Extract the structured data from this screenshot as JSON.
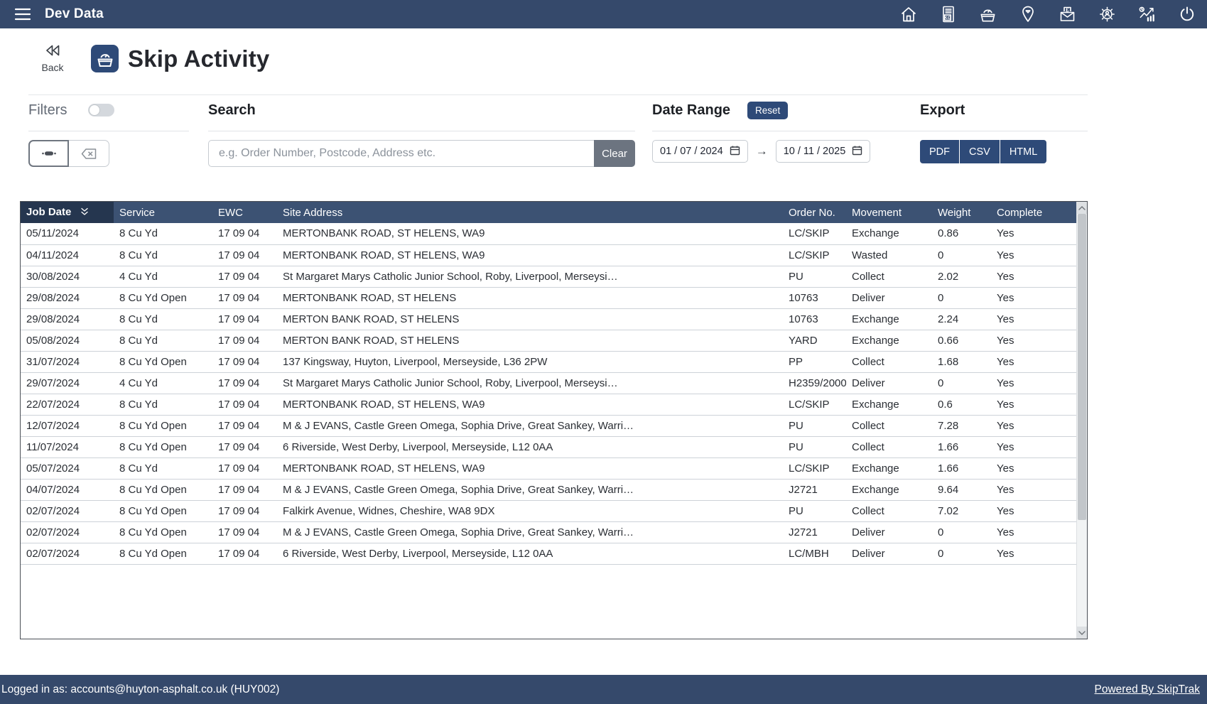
{
  "topbar": {
    "title": "Dev Data",
    "icons": [
      "menu-icon",
      "home-icon",
      "kg-ticket-icon",
      "skip-gauge-icon",
      "location-pin-icon",
      "invoice-envelope-icon",
      "admin-gear-icon",
      "analytics-chart-icon",
      "power-icon"
    ]
  },
  "header": {
    "back_label": "Back",
    "title": "Skip Activity"
  },
  "filters": {
    "title": "Filters",
    "toggle_state": "off"
  },
  "search": {
    "title": "Search",
    "placeholder": "e.g. Order Number, Postcode, Address etc.",
    "value": "",
    "clear_label": "Clear"
  },
  "date_range": {
    "title": "Date Range",
    "reset_label": "Reset",
    "from": "01 / 07 / 2024",
    "to": "10 / 11 / 2025",
    "arrow": "→"
  },
  "export": {
    "title": "Export",
    "buttons": [
      "PDF",
      "CSV",
      "HTML"
    ]
  },
  "table": {
    "columns": [
      "Job Date",
      "Service",
      "EWC",
      "Site Address",
      "Order No.",
      "Movement",
      "Weight",
      "Complete"
    ],
    "column_keys": [
      "job_date",
      "service",
      "ewc",
      "site_address",
      "order_no",
      "movement",
      "weight",
      "complete"
    ],
    "sorted_column": "Job Date",
    "sort_direction": "desc",
    "rows": [
      [
        "05/11/2024",
        "8 Cu Yd",
        "17 09 04",
        "MERTONBANK ROAD, ST HELENS, WA9",
        "LC/SKIP",
        "Exchange",
        "0.86",
        "Yes"
      ],
      [
        "04/11/2024",
        "8 Cu Yd",
        "17 09 04",
        "MERTONBANK ROAD, ST HELENS, WA9",
        "LC/SKIP",
        "Wasted",
        "0",
        "Yes"
      ],
      [
        "30/08/2024",
        "4 Cu Yd",
        "17 09 04",
        "St Margaret Marys Catholic Junior School, Roby, Liverpool, Merseysi…",
        "PU",
        "Collect",
        "2.02",
        "Yes"
      ],
      [
        "29/08/2024",
        "8 Cu Yd Open",
        "17 09 04",
        "MERTONBANK ROAD, ST HELENS",
        "10763",
        "Deliver",
        "0",
        "Yes"
      ],
      [
        "29/08/2024",
        "8 Cu Yd",
        "17 09 04",
        "MERTON BANK ROAD, ST HELENS",
        "10763",
        "Exchange",
        "2.24",
        "Yes"
      ],
      [
        "05/08/2024",
        "8 Cu Yd",
        "17 09 04",
        "MERTON BANK ROAD, ST HELENS",
        "YARD",
        "Exchange",
        "0.66",
        "Yes"
      ],
      [
        "31/07/2024",
        "8 Cu Yd Open",
        "17 09 04",
        "137 Kingsway, Huyton, Liverpool, Merseyside, L36 2PW",
        "PP",
        "Collect",
        "1.68",
        "Yes"
      ],
      [
        "29/07/2024",
        "4 Cu Yd",
        "17 09 04",
        "St Margaret Marys Catholic Junior School, Roby, Liverpool, Merseysi…",
        "H2359/2000",
        "Deliver",
        "0",
        "Yes"
      ],
      [
        "22/07/2024",
        "8 Cu Yd",
        "17 09 04",
        "MERTONBANK ROAD, ST HELENS, WA9",
        "LC/SKIP",
        "Exchange",
        "0.6",
        "Yes"
      ],
      [
        "12/07/2024",
        "8 Cu Yd Open",
        "17 09 04",
        "M & J EVANS, Castle Green Omega, Sophia Drive, Great Sankey, Warri…",
        "PU",
        "Collect",
        "7.28",
        "Yes"
      ],
      [
        "11/07/2024",
        "8 Cu Yd Open",
        "17 09 04",
        "6 Riverside, West Derby, Liverpool, Merseyside, L12 0AA",
        "PU",
        "Collect",
        "1.66",
        "Yes"
      ],
      [
        "05/07/2024",
        "8 Cu Yd",
        "17 09 04",
        "MERTONBANK ROAD, ST HELENS, WA9",
        "LC/SKIP",
        "Exchange",
        "1.66",
        "Yes"
      ],
      [
        "04/07/2024",
        "8 Cu Yd Open",
        "17 09 04",
        "M & J EVANS, Castle Green Omega, Sophia Drive, Great Sankey, Warri…",
        "J2721",
        "Exchange",
        "9.64",
        "Yes"
      ],
      [
        "02/07/2024",
        "8 Cu Yd Open",
        "17 09 04",
        "Falkirk Avenue, Widnes, Cheshire, WA8 9DX",
        "PU",
        "Collect",
        "7.02",
        "Yes"
      ],
      [
        "02/07/2024",
        "8 Cu Yd Open",
        "17 09 04",
        "M & J EVANS, Castle Green Omega, Sophia Drive, Great Sankey, Warri…",
        "J2721",
        "Deliver",
        "0",
        "Yes"
      ],
      [
        "02/07/2024",
        "8 Cu Yd Open",
        "17 09 04",
        "6 Riverside, West Derby, Liverpool, Merseyside, L12 0AA",
        "LC/MBH",
        "Deliver",
        "0",
        "Yes"
      ]
    ]
  },
  "footer": {
    "logged_in": "Logged in as: accounts@huyton-asphalt.co.uk (HUY002)",
    "powered_by": "Powered By SkipTrak"
  },
  "colors": {
    "navy": "#35496B",
    "table_header": "#3C5273",
    "sorted_header": "#25364F",
    "button_navy": "#2E4A78",
    "clear_gray": "#6C7480"
  }
}
